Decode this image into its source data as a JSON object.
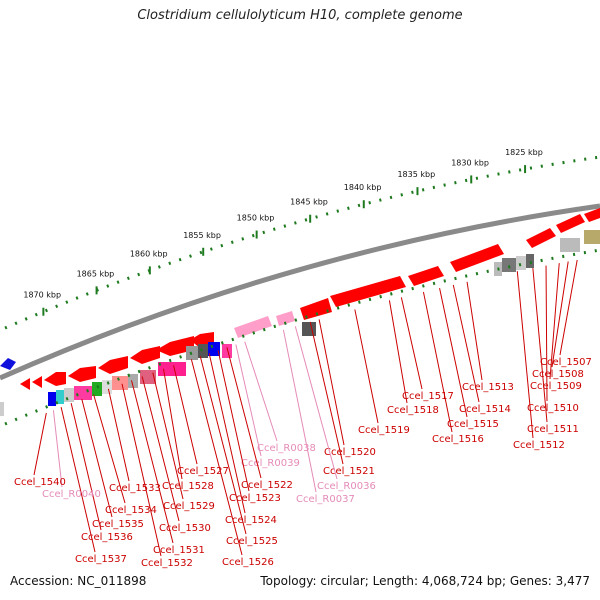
{
  "title": "Clostridium cellulolyticum H10, complete genome",
  "footer": {
    "accession": "Accession: NC_011898",
    "summary": "Topology: circular; Length: 4,068,724 bp; Genes: 3,477"
  },
  "scale_ticks": [
    {
      "label": "1825 kbp",
      "t": 0.875
    },
    {
      "label": "1830 kbp",
      "t": 0.785
    },
    {
      "label": "1835 kbp",
      "t": 0.695
    },
    {
      "label": "1840 kbp",
      "t": 0.605
    },
    {
      "label": "1845 kbp",
      "t": 0.515
    },
    {
      "label": "1850 kbp",
      "t": 0.425
    },
    {
      "label": "1855 kbp",
      "t": 0.335
    },
    {
      "label": "1860 kbp",
      "t": 0.245
    },
    {
      "label": "1865 kbp",
      "t": 0.155
    },
    {
      "label": "1870 kbp",
      "t": 0.065
    }
  ],
  "colors": {
    "backbone": "#808080",
    "cds": "#ff0000",
    "rna": "#ff9ec8",
    "tick": "#1e7a1e"
  },
  "genes": [
    {
      "label": "Ccel_1507",
      "color": "#cc0000",
      "t": 0.962
    },
    {
      "label": "Ccel_1508",
      "color": "#cc0000",
      "t": 0.947
    },
    {
      "label": "Ccel_1509",
      "color": "#cc0000",
      "t": 0.932
    },
    {
      "label": "Ccel_1510",
      "color": "#cc0000",
      "t": 0.91
    },
    {
      "label": "Ccel_1511",
      "color": "#cc0000",
      "t": 0.888
    },
    {
      "label": "Ccel_1512",
      "color": "#cc0000",
      "t": 0.862
    },
    {
      "label": "Ccel_1513",
      "color": "#cc0000",
      "t": 0.778
    },
    {
      "label": "Ccel_1514",
      "color": "#cc0000",
      "t": 0.755
    },
    {
      "label": "Ccel_1515",
      "color": "#cc0000",
      "t": 0.732
    },
    {
      "label": "Ccel_1516",
      "color": "#cc0000",
      "t": 0.705
    },
    {
      "label": "Ccel_1517",
      "color": "#cc0000",
      "t": 0.668
    },
    {
      "label": "Ccel_1518",
      "color": "#cc0000",
      "t": 0.648
    },
    {
      "label": "Ccel_1519",
      "color": "#cc0000",
      "t": 0.59
    },
    {
      "label": "Ccel_1520",
      "color": "#cc0000",
      "t": 0.53
    },
    {
      "label": "Ccel_1521",
      "color": "#cc0000",
      "t": 0.515
    },
    {
      "label": "Ccel_R0036",
      "color": "#e58bb8",
      "t": 0.49
    },
    {
      "label": "Ccel_R0037",
      "color": "#e58bb8",
      "t": 0.47
    },
    {
      "label": "Ccel_R0038",
      "color": "#e58bb8",
      "t": 0.405
    },
    {
      "label": "Ccel_R0039",
      "color": "#e58bb8",
      "t": 0.39
    },
    {
      "label": "Ccel_1522",
      "color": "#cc0000",
      "t": 0.375
    },
    {
      "label": "Ccel_1523",
      "color": "#cc0000",
      "t": 0.36
    },
    {
      "label": "Ccel_1524",
      "color": "#cc0000",
      "t": 0.345
    },
    {
      "label": "Ccel_1525",
      "color": "#cc0000",
      "t": 0.33
    },
    {
      "label": "Ccel_1526",
      "color": "#cc0000",
      "t": 0.315
    },
    {
      "label": "Ccel_1527",
      "color": "#cc0000",
      "t": 0.285
    },
    {
      "label": "Ccel_1528",
      "color": "#cc0000",
      "t": 0.268
    },
    {
      "label": "Ccel_1529",
      "color": "#cc0000",
      "t": 0.25
    },
    {
      "label": "Ccel_1530",
      "color": "#cc0000",
      "t": 0.232
    },
    {
      "label": "Ccel_1531",
      "color": "#cc0000",
      "t": 0.214
    },
    {
      "label": "Ccel_1532",
      "color": "#cc0000",
      "t": 0.198
    },
    {
      "label": "Ccel_1533",
      "color": "#cc0000",
      "t": 0.175
    },
    {
      "label": "Ccel_1534",
      "color": "#cc0000",
      "t": 0.15
    },
    {
      "label": "Ccel_1535",
      "color": "#cc0000",
      "t": 0.13
    },
    {
      "label": "Ccel_1536",
      "color": "#cc0000",
      "t": 0.112
    },
    {
      "label": "Ccel_1537",
      "color": "#cc0000",
      "t": 0.095
    },
    {
      "label": "Ccel_R0040",
      "color": "#e58bb8",
      "t": 0.082
    },
    {
      "label": "Ccel_1540",
      "color": "#cc0000",
      "t": 0.07
    }
  ]
}
